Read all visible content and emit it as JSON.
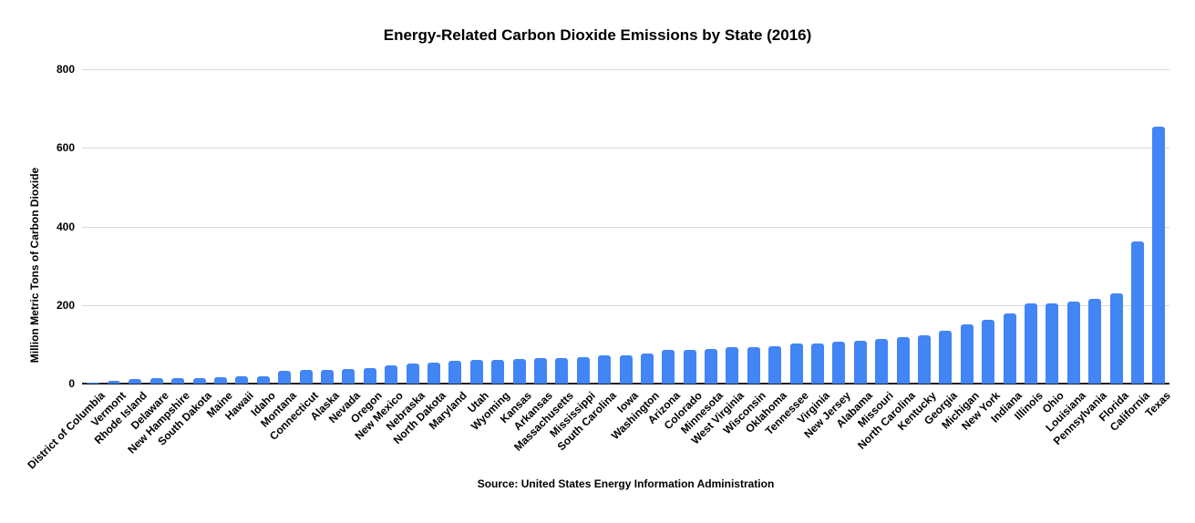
{
  "colors": {
    "bar": "#4285f4",
    "gridline": "#dadada",
    "axis_line": "#212121",
    "text": "#000000",
    "background": "#ffffff"
  },
  "chart_data": {
    "type": "bar",
    "title": "Energy-Related Carbon Dioxide Emissions by State (2016)",
    "ylabel": "Million Metric Tons of Carbon Dioxide",
    "xlabel": "",
    "source": "Source: United States Energy Information Administration",
    "ylim": [
      0,
      800
    ],
    "yticks": [
      0,
      200,
      400,
      600,
      800
    ],
    "grid": true,
    "legend": false,
    "categories": [
      "District of Columbia",
      "Vermont",
      "Rhode Island",
      "Delaware",
      "New Hampshire",
      "South Dakota",
      "Maine",
      "Hawaii",
      "Idaho",
      "Montana",
      "Connecticut",
      "Alaska",
      "Nevada",
      "Oregon",
      "New Mexico",
      "Nebraska",
      "North Dakota",
      "Maryland",
      "Utah",
      "Wyoming",
      "Kansas",
      "Arkansas",
      "Massachusetts",
      "Mississippi",
      "South Carolina",
      "Iowa",
      "Washington",
      "Arizona",
      "Colorado",
      "Minnesota",
      "West Virginia",
      "Wisconsin",
      "Oklahoma",
      "Tennessee",
      "Virginia",
      "New Jersey",
      "Alabama",
      "Missouri",
      "North Carolina",
      "Kentucky",
      "Georgia",
      "Michigan",
      "New York",
      "Indiana",
      "Illinois",
      "Ohio",
      "Louisiana",
      "Pennsylvania",
      "Florida",
      "California",
      "Texas"
    ],
    "values": [
      3,
      6,
      11,
      13,
      14,
      15,
      16,
      18,
      18,
      32,
      35,
      35,
      37,
      40,
      47,
      50,
      54,
      58,
      60,
      61,
      63,
      64,
      66,
      67,
      71,
      72,
      77,
      85,
      86,
      87,
      92,
      93,
      95,
      101,
      103,
      107,
      110,
      113,
      119,
      122,
      135,
      150,
      162,
      179,
      203,
      205,
      208,
      215,
      230,
      361,
      653
    ]
  }
}
